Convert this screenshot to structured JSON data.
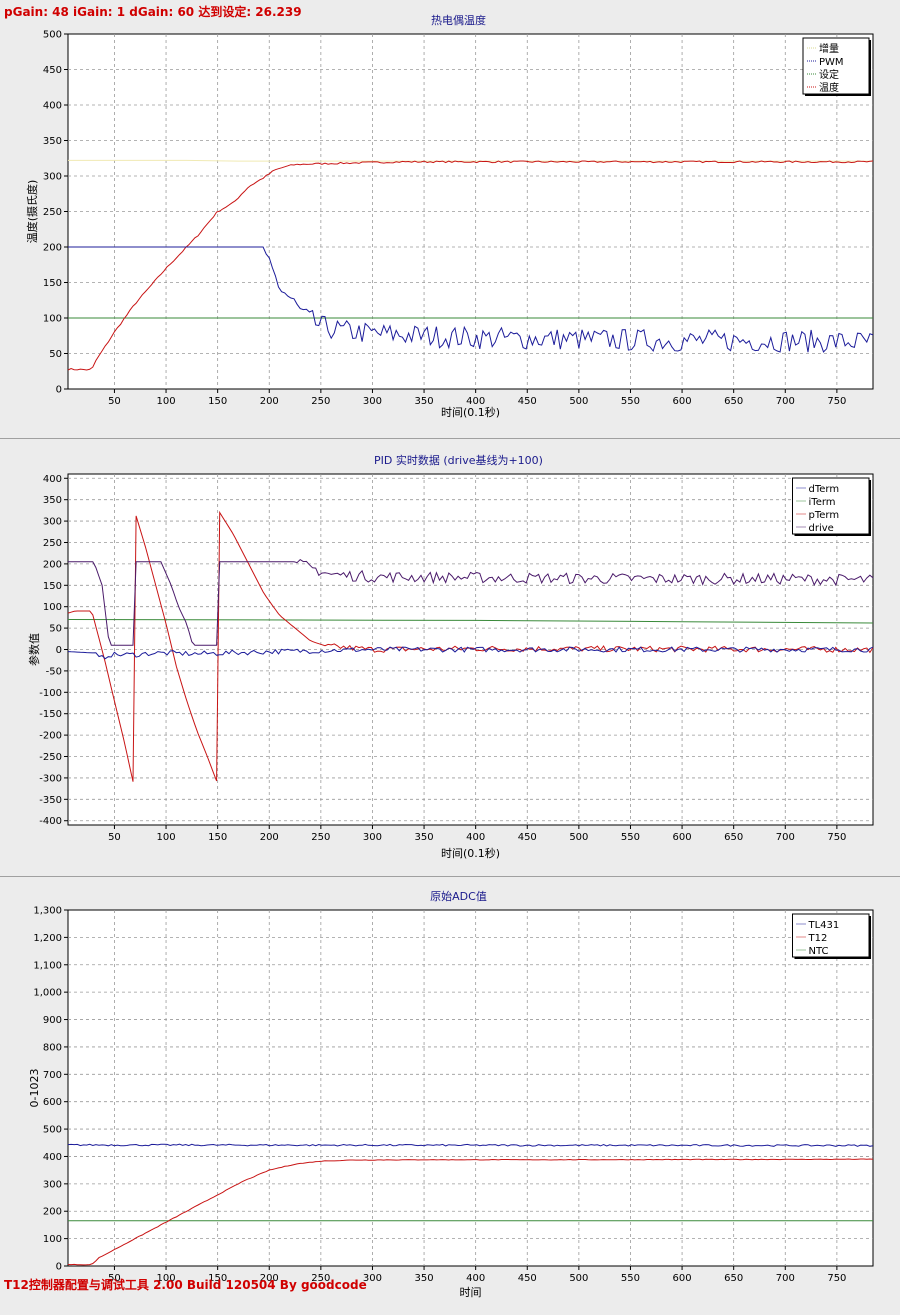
{
  "status_text": "pGain: 48 iGain: 1 dGain: 60 达到设定: 26.239",
  "footer_text": "T12控制器配置与调试工具 2.00 Build 120504 By goodcode",
  "chart_data": [
    {
      "type": "line",
      "title": "热电偶温度",
      "xlabel": "时间(0.1秒)",
      "ylabel": "温度(摄氏度)",
      "xlim": [
        5,
        785
      ],
      "ylim": [
        0,
        500
      ],
      "x_ticks": [
        50,
        100,
        150,
        200,
        250,
        300,
        350,
        400,
        450,
        500,
        550,
        600,
        650,
        700,
        750
      ],
      "y_ticks": [
        0,
        50,
        100,
        150,
        200,
        250,
        300,
        350,
        400,
        450,
        500
      ],
      "grid": true,
      "legend_position": "top-right",
      "legend": [
        {
          "name": "增量",
          "color": "#d8d890"
        },
        {
          "name": "PWM",
          "color": "#1c1c9a"
        },
        {
          "name": "设定",
          "color": "#3a8a3a"
        },
        {
          "name": "温度",
          "color": "#c81414"
        }
      ],
      "series": [
        {
          "name": "增量",
          "color": "#f0eab4",
          "points": [
            [
              5,
              322
            ],
            [
              120,
              322
            ],
            [
              170,
              321
            ],
            [
              785,
              321
            ]
          ]
        },
        {
          "name": "设定",
          "color": "#3a8a3a",
          "points": [
            [
              5,
              100
            ],
            [
              785,
              100
            ]
          ]
        },
        {
          "name": "温度",
          "color": "#c81414",
          "points": [
            [
              5,
              28
            ],
            [
              28,
              27
            ],
            [
              32,
              40
            ],
            [
              50,
              80
            ],
            [
              70,
              120
            ],
            [
              100,
              170
            ],
            [
              130,
              215
            ],
            [
              150,
              250
            ],
            [
              165,
              262
            ],
            [
              180,
              285
            ],
            [
              195,
              298
            ],
            [
              205,
              308
            ],
            [
              215,
              313
            ],
            [
              225,
              316
            ],
            [
              240,
              317
            ],
            [
              270,
              318
            ],
            [
              330,
              320
            ],
            [
              400,
              320
            ],
            [
              500,
              320
            ],
            [
              600,
              320
            ],
            [
              700,
              320
            ],
            [
              785,
              320
            ]
          ],
          "noise": 1.2
        },
        {
          "name": "PWM",
          "color": "#1c1c9a",
          "points": [
            [
              5,
              200
            ],
            [
              195,
              200
            ],
            [
              200,
              175
            ],
            [
              205,
              160
            ],
            [
              212,
              140
            ],
            [
              220,
              128
            ],
            [
              228,
              112
            ],
            [
              236,
              100
            ],
            [
              250,
              88
            ],
            [
              270,
              82
            ],
            [
              300,
              78
            ],
            [
              350,
              75
            ],
            [
              400,
              72
            ],
            [
              500,
              70
            ],
            [
              600,
              68
            ],
            [
              700,
              68
            ],
            [
              785,
              66
            ]
          ],
          "noise_from": 198,
          "noise": 16
        }
      ]
    },
    {
      "type": "line",
      "title": "PID 实时数据 (drive基线为+100)",
      "xlabel": "时间(0.1秒)",
      "ylabel": "参数值",
      "xlim": [
        5,
        785
      ],
      "ylim": [
        -410,
        410
      ],
      "x_ticks": [
        50,
        100,
        150,
        200,
        250,
        300,
        350,
        400,
        450,
        500,
        550,
        600,
        650,
        700,
        750
      ],
      "y_ticks": [
        -400,
        -350,
        -300,
        -250,
        -200,
        -150,
        -100,
        -50,
        0,
        50,
        100,
        150,
        200,
        250,
        300,
        350,
        400
      ],
      "grid": true,
      "legend_position": "top-right",
      "legend": [
        {
          "name": "dTerm",
          "color": "#1c1c9a"
        },
        {
          "name": "iTerm",
          "color": "#3a8a3a"
        },
        {
          "name": "pTerm",
          "color": "#c81414"
        },
        {
          "name": "drive",
          "color": "#4a1a6a"
        }
      ],
      "series": [
        {
          "name": "iTerm",
          "color": "#3a8a3a",
          "points": [
            [
              5,
              70
            ],
            [
              400,
              68
            ],
            [
              600,
              65
            ],
            [
              785,
              62
            ]
          ]
        },
        {
          "name": "pTerm",
          "color": "#c81414",
          "points": [
            [
              5,
              85
            ],
            [
              12,
              90
            ],
            [
              28,
              90
            ],
            [
              40,
              -20
            ],
            [
              50,
              -120
            ],
            [
              60,
              -220
            ],
            [
              69,
              -320
            ],
            [
              70,
              320
            ],
            [
              80,
              240
            ],
            [
              90,
              150
            ],
            [
              100,
              60
            ],
            [
              110,
              -40
            ],
            [
              120,
              -120
            ],
            [
              130,
              -190
            ],
            [
              140,
              -250
            ],
            [
              151,
              -320
            ],
            [
              152,
              320
            ],
            [
              165,
              270
            ],
            [
              180,
              200
            ],
            [
              195,
              130
            ],
            [
              210,
              80
            ],
            [
              225,
              50
            ],
            [
              240,
              20
            ],
            [
              255,
              8
            ],
            [
              300,
              0
            ],
            [
              400,
              2
            ],
            [
              785,
              0
            ]
          ],
          "noise_from": 255,
          "noise": 7
        },
        {
          "name": "dTerm",
          "color": "#1c1c9a",
          "points": [
            [
              5,
              -5
            ],
            [
              30,
              -8
            ],
            [
              36,
              -22
            ],
            [
              45,
              -12
            ],
            [
              70,
              -12
            ],
            [
              90,
              -8
            ],
            [
              130,
              -10
            ],
            [
              160,
              -8
            ],
            [
              200,
              -5
            ],
            [
              240,
              -3
            ],
            [
              300,
              0
            ],
            [
              785,
              0
            ]
          ],
          "noise_from": 30,
          "noise": 6
        },
        {
          "name": "drive",
          "color": "#4a1a6a",
          "points": [
            [
              5,
              205
            ],
            [
              30,
              205
            ],
            [
              38,
              150
            ],
            [
              45,
              10
            ],
            [
              68,
              10
            ],
            [
              69,
              10
            ],
            [
              70,
              205
            ],
            [
              95,
              205
            ],
            [
              105,
              150
            ],
            [
              112,
              100
            ],
            [
              120,
              60
            ],
            [
              126,
              10
            ],
            [
              150,
              10
            ],
            [
              151,
              10
            ],
            [
              152,
              205
            ],
            [
              225,
              205
            ],
            [
              235,
              195
            ],
            [
              260,
              175
            ],
            [
              300,
              170
            ],
            [
              400,
              168
            ],
            [
              500,
              166
            ],
            [
              600,
              165
            ],
            [
              700,
              165
            ],
            [
              785,
              162
            ]
          ],
          "noise_from": 230,
          "noise": 13
        }
      ]
    },
    {
      "type": "line",
      "title": "原始ADC值",
      "xlabel": "时间",
      "ylabel": "0-1023",
      "xlim": [
        5,
        785
      ],
      "ylim": [
        0,
        1300
      ],
      "x_ticks": [
        50,
        100,
        150,
        200,
        250,
        300,
        350,
        400,
        450,
        500,
        550,
        600,
        650,
        700,
        750
      ],
      "y_ticks": [
        0,
        100,
        200,
        300,
        400,
        500,
        600,
        700,
        800,
        900,
        1000,
        1100,
        1200,
        1300
      ],
      "y_tick_labels": [
        "0",
        "100",
        "200",
        "300",
        "400",
        "500",
        "600",
        "700",
        "800",
        "900",
        "1,000",
        "1,100",
        "1,200",
        "1,300"
      ],
      "grid": true,
      "legend_position": "top-right",
      "legend": [
        {
          "name": "TL431",
          "color": "#1c1c9a"
        },
        {
          "name": "T12",
          "color": "#c81414"
        },
        {
          "name": "NTC",
          "color": "#3a8a3a"
        }
      ],
      "series": [
        {
          "name": "NTC",
          "color": "#3a8a3a",
          "points": [
            [
              5,
              165
            ],
            [
              785,
              165
            ]
          ]
        },
        {
          "name": "TL431",
          "color": "#1c1c9a",
          "points": [
            [
              5,
              442
            ],
            [
              785,
              440
            ]
          ],
          "noise": 3
        },
        {
          "name": "T12",
          "color": "#c81414",
          "points": [
            [
              5,
              5
            ],
            [
              28,
              5
            ],
            [
              35,
              30
            ],
            [
              60,
              80
            ],
            [
              90,
              140
            ],
            [
              120,
              200
            ],
            [
              150,
              260
            ],
            [
              175,
              310
            ],
            [
              200,
              350
            ],
            [
              225,
              372
            ],
            [
              250,
              383
            ],
            [
              280,
              387
            ],
            [
              350,
              388
            ],
            [
              500,
              388
            ],
            [
              785,
              390
            ]
          ],
          "noise": 1
        }
      ]
    }
  ]
}
